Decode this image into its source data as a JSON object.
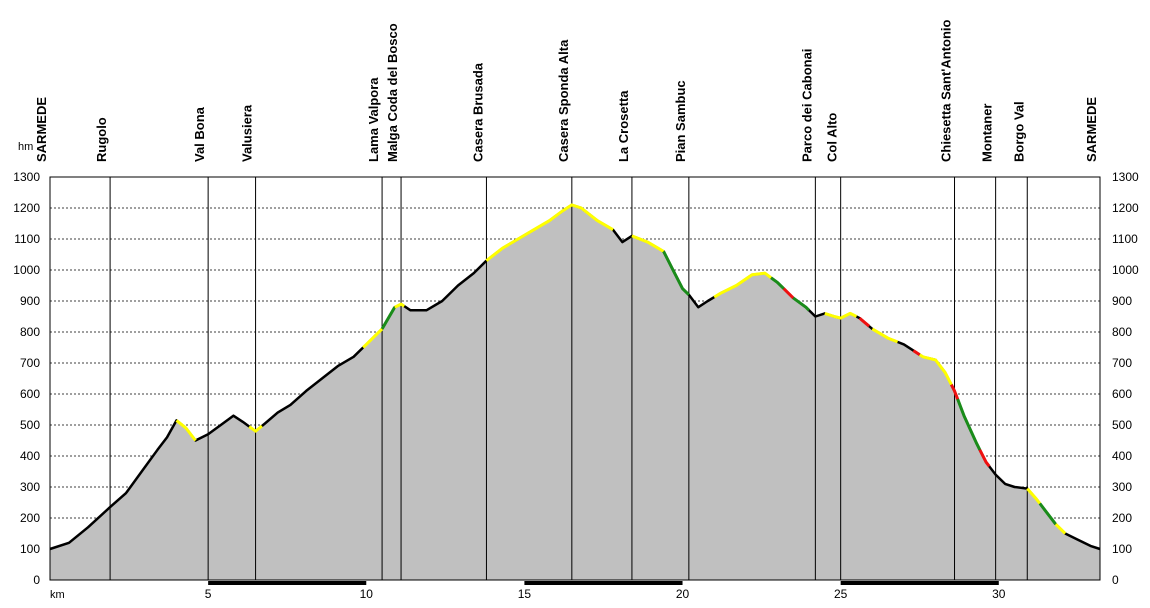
{
  "chart_data": {
    "type": "area",
    "ylabel": "hm",
    "xlabel": "km",
    "ylim": [
      0,
      1300
    ],
    "xlim": [
      0,
      33.2
    ],
    "y_ticks": [
      0,
      100,
      200,
      300,
      400,
      500,
      600,
      700,
      800,
      900,
      1000,
      1100,
      1200,
      1300
    ],
    "x_ticks": [
      5,
      10,
      15,
      20,
      25,
      30
    ],
    "grid": "horizontal-dashed",
    "colors": {
      "fill": "#c0c0c0",
      "profile": "#000000",
      "gentle": "#ffff00",
      "moderate": "#1a8c1a",
      "steep": "#ee1111"
    },
    "waypoints": [
      {
        "name": "SARMEDE",
        "km": 0
      },
      {
        "name": "Rugolo",
        "km": 1.9
      },
      {
        "name": "Val Bona",
        "km": 5.0
      },
      {
        "name": "Valusiera",
        "km": 6.5
      },
      {
        "name": "Lama Valpora",
        "km": 10.5
      },
      {
        "name": "Malga Coda del Bosco",
        "km": 11.1
      },
      {
        "name": "Casera Brusada",
        "km": 13.8
      },
      {
        "name": "Casera Sponda Alta",
        "km": 16.5
      },
      {
        "name": "La Crosetta",
        "km": 18.4
      },
      {
        "name": "Pian Sambuc",
        "km": 20.2
      },
      {
        "name": "Parco dei Cabonai",
        "km": 24.2
      },
      {
        "name": "Col Alto",
        "km": 25.0
      },
      {
        "name": "Chiesetta Sant'Antonio",
        "km": 28.6
      },
      {
        "name": "Montaner",
        "km": 29.9
      },
      {
        "name": "Borgo Val",
        "km": 30.9
      },
      {
        "name": "SARMEDE",
        "km": 33.2
      }
    ],
    "profile": [
      [
        0,
        100
      ],
      [
        0.6,
        120
      ],
      [
        1.2,
        170
      ],
      [
        1.9,
        235
      ],
      [
        2.4,
        280
      ],
      [
        2.9,
        350
      ],
      [
        3.4,
        420
      ],
      [
        3.7,
        460
      ],
      [
        4.0,
        515
      ],
      [
        4.3,
        490
      ],
      [
        4.6,
        450
      ],
      [
        5.0,
        470
      ],
      [
        5.4,
        500
      ],
      [
        5.8,
        530
      ],
      [
        6.1,
        510
      ],
      [
        6.5,
        480
      ],
      [
        6.8,
        505
      ],
      [
        7.2,
        540
      ],
      [
        7.6,
        565
      ],
      [
        8.1,
        610
      ],
      [
        8.6,
        650
      ],
      [
        9.1,
        690
      ],
      [
        9.6,
        720
      ],
      [
        10.0,
        760
      ],
      [
        10.5,
        810
      ],
      [
        10.9,
        880
      ],
      [
        11.1,
        890
      ],
      [
        11.4,
        870
      ],
      [
        11.9,
        870
      ],
      [
        12.4,
        900
      ],
      [
        12.9,
        950
      ],
      [
        13.4,
        990
      ],
      [
        13.8,
        1030
      ],
      [
        14.3,
        1070
      ],
      [
        14.8,
        1100
      ],
      [
        15.3,
        1130
      ],
      [
        15.8,
        1160
      ],
      [
        16.2,
        1190
      ],
      [
        16.5,
        1210
      ],
      [
        16.8,
        1200
      ],
      [
        17.3,
        1160
      ],
      [
        17.8,
        1130
      ],
      [
        18.1,
        1090
      ],
      [
        18.4,
        1110
      ],
      [
        18.9,
        1090
      ],
      [
        19.4,
        1060
      ],
      [
        19.7,
        1000
      ],
      [
        20.0,
        940
      ],
      [
        20.2,
        920
      ],
      [
        20.5,
        880
      ],
      [
        20.8,
        900
      ],
      [
        21.2,
        925
      ],
      [
        21.7,
        950
      ],
      [
        22.2,
        985
      ],
      [
        22.6,
        990
      ],
      [
        23.0,
        960
      ],
      [
        23.5,
        910
      ],
      [
        23.9,
        880
      ],
      [
        24.2,
        850
      ],
      [
        24.5,
        860
      ],
      [
        24.8,
        850
      ],
      [
        25.0,
        845
      ],
      [
        25.3,
        860
      ],
      [
        25.6,
        845
      ],
      [
        26.0,
        810
      ],
      [
        26.5,
        780
      ],
      [
        27.0,
        760
      ],
      [
        27.3,
        740
      ],
      [
        27.6,
        720
      ],
      [
        28.0,
        710
      ],
      [
        28.3,
        670
      ],
      [
        28.6,
        610
      ],
      [
        28.9,
        530
      ],
      [
        29.3,
        440
      ],
      [
        29.6,
        380
      ],
      [
        29.9,
        340
      ],
      [
        30.2,
        310
      ],
      [
        30.5,
        300
      ],
      [
        30.9,
        295
      ],
      [
        31.2,
        260
      ],
      [
        31.5,
        220
      ],
      [
        31.8,
        180
      ],
      [
        32.1,
        150
      ],
      [
        32.5,
        130
      ],
      [
        32.9,
        110
      ],
      [
        33.2,
        100
      ]
    ],
    "slope_segments": [
      {
        "class": "gentle",
        "from": 4.0,
        "to": 4.6
      },
      {
        "class": "gentle",
        "from": 6.3,
        "to": 6.7
      },
      {
        "class": "gentle",
        "from": 9.9,
        "to": 10.5
      },
      {
        "class": "moderate",
        "from": 10.5,
        "to": 10.9
      },
      {
        "class": "gentle",
        "from": 10.9,
        "to": 11.2
      },
      {
        "class": "gentle",
        "from": 13.8,
        "to": 17.8
      },
      {
        "class": "gentle",
        "from": 18.4,
        "to": 19.4
      },
      {
        "class": "moderate",
        "from": 19.4,
        "to": 20.2
      },
      {
        "class": "gentle",
        "from": 21.0,
        "to": 22.8
      },
      {
        "class": "moderate",
        "from": 22.8,
        "to": 23.2
      },
      {
        "class": "steep",
        "from": 23.2,
        "to": 23.5
      },
      {
        "class": "moderate",
        "from": 23.5,
        "to": 24.0
      },
      {
        "class": "gentle",
        "from": 24.5,
        "to": 25.5
      },
      {
        "class": "steep",
        "from": 25.6,
        "to": 25.9
      },
      {
        "class": "gentle",
        "from": 26.0,
        "to": 26.8
      },
      {
        "class": "steep",
        "from": 27.3,
        "to": 27.5
      },
      {
        "class": "gentle",
        "from": 27.5,
        "to": 28.5
      },
      {
        "class": "steep",
        "from": 28.5,
        "to": 28.7
      },
      {
        "class": "moderate",
        "from": 28.7,
        "to": 29.4
      },
      {
        "class": "steep",
        "from": 29.4,
        "to": 29.7
      },
      {
        "class": "gentle",
        "from": 30.9,
        "to": 31.3
      },
      {
        "class": "moderate",
        "from": 31.3,
        "to": 31.8
      },
      {
        "class": "gentle",
        "from": 31.8,
        "to": 32.1
      }
    ],
    "distance_bands": [
      {
        "from": 5,
        "to": 10
      },
      {
        "from": 15,
        "to": 20
      },
      {
        "from": 25,
        "to": 30
      }
    ]
  }
}
